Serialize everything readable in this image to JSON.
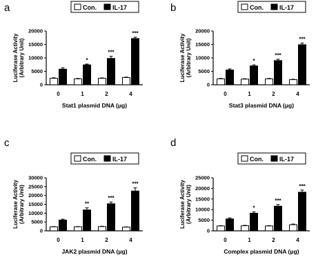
{
  "chart_data": [
    {
      "panel": "a",
      "type": "bar",
      "categories": [
        "0",
        "1",
        "2",
        "4"
      ],
      "xlabel": "Stat1 plasmid DNA (μg)",
      "ylabel": [
        "Luciferase Activity",
        "(Arbitrary Unit)"
      ],
      "ylim": [
        0,
        20000
      ],
      "yticks": [
        0,
        5000,
        10000,
        15000,
        20000
      ],
      "legend": [
        "Con.",
        "IL-17"
      ],
      "series": [
        {
          "name": "Con.",
          "color": "#ffffff",
          "values": [
            2400,
            2200,
            2400,
            2700
          ],
          "errors": [
            200,
            150,
            150,
            150
          ]
        },
        {
          "name": "IL-17",
          "color": "#000000",
          "values": [
            5800,
            7400,
            9800,
            17200
          ],
          "errors": [
            500,
            300,
            800,
            500
          ]
        }
      ],
      "significance": [
        "",
        "*",
        "***",
        "***"
      ]
    },
    {
      "panel": "b",
      "type": "bar",
      "categories": [
        "0",
        "1",
        "2",
        "4"
      ],
      "xlabel": "Stat3 plasmid DNA (μg)",
      "ylabel": [
        "Luciferase Activity",
        "(Arbitrary Unit)"
      ],
      "ylim": [
        0,
        20000
      ],
      "yticks": [
        0,
        5000,
        10000,
        15000,
        20000
      ],
      "legend": [
        "Con.",
        "IL-17"
      ],
      "series": [
        {
          "name": "Con.",
          "color": "#ffffff",
          "values": [
            2200,
            2100,
            2200,
            1900
          ],
          "errors": [
            150,
            150,
            150,
            150
          ]
        },
        {
          "name": "IL-17",
          "color": "#000000",
          "values": [
            5500,
            7000,
            9000,
            14900
          ],
          "errors": [
            400,
            400,
            500,
            600
          ]
        }
      ],
      "significance": [
        "",
        "*",
        "***",
        "***"
      ]
    },
    {
      "panel": "c",
      "type": "bar",
      "categories": [
        "0",
        "1",
        "2",
        "4"
      ],
      "xlabel": "JAK2 plasmid DNA (μg)",
      "ylabel": [
        "Luciferase Activity",
        "(Arbitrary Unit)"
      ],
      "ylim": [
        0,
        30000
      ],
      "yticks": [
        0,
        5000,
        10000,
        15000,
        20000,
        25000,
        30000
      ],
      "legend": [
        "Con.",
        "IL-17"
      ],
      "series": [
        {
          "name": "Con.",
          "color": "#ffffff",
          "values": [
            2300,
            2300,
            2400,
            2100
          ],
          "errors": [
            150,
            150,
            200,
            150
          ]
        },
        {
          "name": "IL-17",
          "color": "#000000",
          "values": [
            6100,
            11800,
            15300,
            22500
          ],
          "errors": [
            500,
            1200,
            1000,
            1800
          ]
        }
      ],
      "significance": [
        "",
        "**",
        "***",
        "***"
      ]
    },
    {
      "panel": "d",
      "type": "bar",
      "categories": [
        "0",
        "1",
        "2",
        "4"
      ],
      "xlabel": "Complex plasmid DNA (μg)",
      "ylabel": [
        "Luciferase Activity",
        "(Arbitrary Unit)"
      ],
      "ylim": [
        0,
        25000
      ],
      "yticks": [
        0,
        5000,
        10000,
        15000,
        20000,
        25000
      ],
      "legend": [
        "Con.",
        "IL-17"
      ],
      "series": [
        {
          "name": "Con.",
          "color": "#ffffff",
          "values": [
            2300,
            2400,
            2300,
            2900
          ],
          "errors": [
            150,
            200,
            150,
            300
          ]
        },
        {
          "name": "IL-17",
          "color": "#000000",
          "values": [
            5600,
            8300,
            11600,
            18200
          ],
          "errors": [
            500,
            600,
            800,
            1000
          ]
        }
      ],
      "significance": [
        "",
        "*",
        "***",
        "***"
      ]
    }
  ]
}
